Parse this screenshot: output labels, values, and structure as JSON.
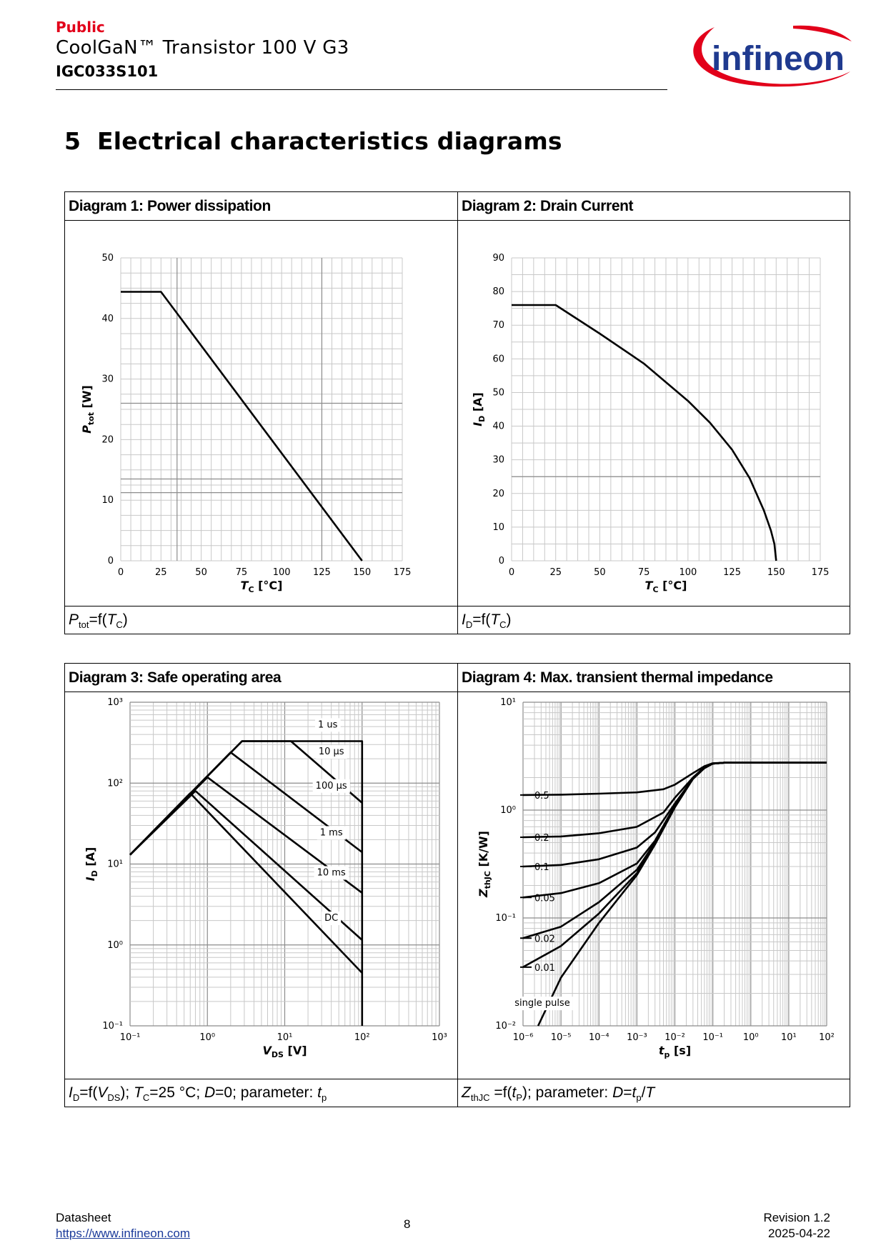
{
  "header": {
    "classification": "Public",
    "product": "CoolGaN™ Transistor 100 V G3",
    "part_number": "IGC033S101",
    "logo_text": "infineon"
  },
  "section": {
    "number": "5",
    "title": "Electrical characteristics diagrams"
  },
  "diagrams": {
    "d1": {
      "title": "Diagram 1: Power dissipation"
    },
    "d2": {
      "title": "Diagram 2: Drain Current"
    },
    "d3": {
      "title": "Diagram 3: Safe operating area"
    },
    "d4": {
      "title": "Diagram 4: Max. transient thermal impedance"
    }
  },
  "captions": {
    "d1": {
      "sym": "P",
      "sub": "tot",
      "eq": "=f(",
      "arg": "T",
      "arg_sub": "C",
      "close": ")"
    },
    "d2": {
      "sym": "I",
      "sub": "D",
      "eq": "=f(",
      "arg": "T",
      "arg_sub": "C",
      "close": ")"
    },
    "d3": {
      "sym": "I",
      "sub": "D",
      "eq": "=f(",
      "arg": "V",
      "arg_sub": "DS",
      "close": "); ",
      "tc": "T",
      "tc_sub": "C",
      "tc_val": "=25 °C; ",
      "d": "D",
      "d_val": "=0; parameter: ",
      "tp": "t",
      "tp_sub": "p"
    },
    "d4": {
      "sym": "Z",
      "sub": "thJC",
      "eq": " =f(",
      "arg": "t",
      "arg_sub": "P",
      "close": "); parameter: ",
      "d": "D",
      "d_eq": "=",
      "tp": "t",
      "tp_sub": "p",
      "slash": "/",
      "T": "T"
    }
  },
  "chart_data": [
    {
      "type": "line",
      "title": "Diagram 1: Power dissipation",
      "xlabel": "T_C [°C]",
      "ylabel": "P_tot [W]",
      "xlim": [
        0,
        175
      ],
      "ylim": [
        0,
        50
      ],
      "xticks": [
        0,
        25,
        50,
        75,
        100,
        125,
        150,
        175
      ],
      "yticks": [
        0,
        10,
        20,
        30,
        40,
        50
      ],
      "grid": true,
      "series": [
        {
          "x": [
            0,
            25,
            150
          ],
          "y": [
            44.4,
            44.4,
            0
          ]
        }
      ]
    },
    {
      "type": "line",
      "title": "Diagram 2: Drain Current",
      "xlabel": "T_C [°C]",
      "ylabel": "I_D [A]",
      "xlim": [
        0,
        175
      ],
      "ylim": [
        0,
        90
      ],
      "xticks": [
        0,
        25,
        50,
        75,
        100,
        125,
        150,
        175
      ],
      "yticks": [
        0,
        10,
        20,
        30,
        40,
        50,
        60,
        70,
        80,
        90
      ],
      "grid": true,
      "series": [
        {
          "x": [
            0,
            25,
            50,
            75,
            100,
            112.5,
            125,
            135,
            143,
            147,
            149,
            150
          ],
          "y": [
            76,
            76,
            67.5,
            58.6,
            47.5,
            41,
            33,
            24.5,
            15,
            9,
            5,
            0
          ]
        }
      ]
    },
    {
      "type": "line",
      "title": "Diagram 3: Safe operating area",
      "xlabel": "V_DS [V]",
      "ylabel": "I_D [A]",
      "xscale": "log",
      "yscale": "log",
      "xlim": [
        0.1,
        1000
      ],
      "ylim": [
        0.1,
        1000
      ],
      "xticks": [
        0.1,
        1,
        10,
        100,
        1000
      ],
      "yticks": [
        0.1,
        1,
        10,
        100,
        1000
      ],
      "tick_labels": [
        "10⁻¹",
        "10⁰",
        "10¹",
        "10²",
        "10³"
      ],
      "grid": true,
      "series": [
        {
          "name": "1 us",
          "x": [
            0.1,
            2.8,
            100,
            100
          ],
          "y": [
            13,
            330,
            330,
            0.1
          ]
        },
        {
          "name": "10 µs",
          "x": [
            0.1,
            2.8,
            12,
            100
          ],
          "y": [
            13,
            330,
            330,
            57
          ]
        },
        {
          "name": "100 µs",
          "x": [
            0.1,
            2,
            100
          ],
          "y": [
            13,
            240,
            14
          ]
        },
        {
          "name": "1 ms",
          "x": [
            0.1,
            1,
            100
          ],
          "y": [
            13,
            118,
            4.4
          ]
        },
        {
          "name": "10 ms",
          "x": [
            0.1,
            0.7,
            100
          ],
          "y": [
            13,
            80,
            1.15
          ]
        },
        {
          "name": "DC",
          "x": [
            0.1,
            0.6,
            100
          ],
          "y": [
            13,
            75,
            0.45
          ]
        }
      ]
    },
    {
      "type": "line",
      "title": "Diagram 4: Max. transient thermal impedance",
      "xlabel": "t_p [s]",
      "ylabel": "Z_thJC [K/W]",
      "xscale": "log",
      "yscale": "log",
      "xlim": [
        1e-06,
        100
      ],
      "ylim": [
        0.01,
        10
      ],
      "xticks": [
        1e-06,
        1e-05,
        0.0001,
        0.001,
        0.01,
        0.1,
        1,
        10,
        100
      ],
      "x_tick_labels": [
        "10⁻⁶",
        "10⁻⁵",
        "10⁻⁴",
        "10⁻³",
        "10⁻²",
        "10⁻¹",
        "10⁰",
        "10¹",
        "10²"
      ],
      "yticks": [
        0.01,
        0.1,
        1,
        10
      ],
      "y_tick_labels": [
        "10⁻²",
        "10⁻¹",
        "10⁰",
        "10¹"
      ],
      "grid": true,
      "series": [
        {
          "name": "0.5",
          "x": [
            1e-06,
            1e-05,
            0.0001,
            0.001,
            0.005,
            0.01,
            0.03,
            0.06,
            0.1,
            0.2,
            1,
            10,
            100
          ],
          "y": [
            1.38,
            1.39,
            1.42,
            1.46,
            1.56,
            1.72,
            2.2,
            2.55,
            2.72,
            2.75,
            2.75,
            2.75,
            2.75
          ]
        },
        {
          "name": "0.2",
          "x": [
            1e-06,
            1e-05,
            0.0001,
            0.001,
            0.005,
            0.01,
            0.03,
            0.06,
            0.1,
            0.2,
            100
          ],
          "y": [
            0.56,
            0.57,
            0.61,
            0.7,
            0.95,
            1.3,
            2.0,
            2.5,
            2.7,
            2.75,
            2.75
          ]
        },
        {
          "name": "0.1",
          "x": [
            1e-06,
            1e-05,
            0.0001,
            0.001,
            0.003,
            0.01,
            0.03,
            0.06,
            0.1,
            0.2,
            100
          ],
          "y": [
            0.3,
            0.31,
            0.35,
            0.45,
            0.62,
            1.15,
            1.95,
            2.45,
            2.7,
            2.75,
            2.75
          ]
        },
        {
          "name": "0.05",
          "x": [
            1e-06,
            1e-05,
            0.0001,
            0.001,
            0.003,
            0.01,
            0.03,
            0.06,
            0.1,
            0.2,
            100
          ],
          "y": [
            0.155,
            0.17,
            0.21,
            0.32,
            0.52,
            1.1,
            1.95,
            2.45,
            2.7,
            2.75,
            2.75
          ]
        },
        {
          "name": "0.02",
          "x": [
            1e-06,
            1e-05,
            0.0001,
            0.001,
            0.003,
            0.01,
            0.03,
            0.06,
            0.1,
            0.2,
            100
          ],
          "y": [
            0.065,
            0.083,
            0.14,
            0.28,
            0.5,
            1.08,
            1.95,
            2.45,
            2.7,
            2.75,
            2.75
          ]
        },
        {
          "name": "0.01",
          "x": [
            1e-06,
            1e-05,
            0.0001,
            0.001,
            0.003,
            0.01,
            0.03,
            0.06,
            0.1,
            0.2,
            100
          ],
          "y": [
            0.035,
            0.055,
            0.11,
            0.26,
            0.49,
            1.07,
            1.95,
            2.45,
            2.7,
            2.75,
            2.75
          ]
        },
        {
          "name": "single pulse",
          "x": [
            2.5e-06,
            1e-05,
            0.0001,
            0.001,
            0.003,
            0.01,
            0.03,
            0.06,
            0.1,
            0.2,
            100
          ],
          "y": [
            0.01,
            0.028,
            0.09,
            0.25,
            0.48,
            1.06,
            1.95,
            2.45,
            2.7,
            2.75,
            2.75
          ]
        }
      ]
    }
  ],
  "footer": {
    "doc_type": "Datasheet",
    "url": "https://www.infineon.com",
    "page": "8",
    "revision": "Revision 1.2",
    "date": "2025-04-22"
  }
}
